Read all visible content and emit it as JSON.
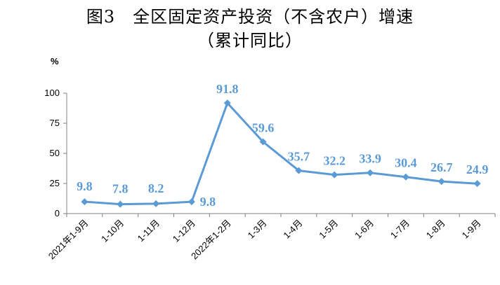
{
  "title": "图3　全区固定资产投资（不含农户）增速",
  "subtitle": "（累计同比）",
  "unit": "%",
  "colors": {
    "series": "#5b9bd5"
  },
  "chart_data": {
    "type": "line",
    "title": "图3　全区固定资产投资（不含农户）增速",
    "subtitle": "（累计同比）",
    "ylabel": "%",
    "xlabel": "",
    "ylim": [
      0,
      100
    ],
    "yticks": [
      0,
      25,
      50,
      75,
      100
    ],
    "grid": false,
    "categories": [
      "2021年1-9月",
      "1-10月",
      "1-11月",
      "1-12月",
      "2022年1-2月",
      "1-3月",
      "1-4月",
      "1-5月",
      "1-6月",
      "1-7月",
      "1-8月",
      "1-9月"
    ],
    "values": [
      9.8,
      7.8,
      8.2,
      9.8,
      91.8,
      59.6,
      35.7,
      32.2,
      33.9,
      30.4,
      26.7,
      24.9
    ],
    "labels": [
      "9.8",
      "7.8",
      "8.2",
      "9.8",
      "91.8",
      "59.6",
      "35.7",
      "32.2",
      "33.9",
      "30.4",
      "26.7",
      "24.9"
    ],
    "marker": "diamond"
  }
}
